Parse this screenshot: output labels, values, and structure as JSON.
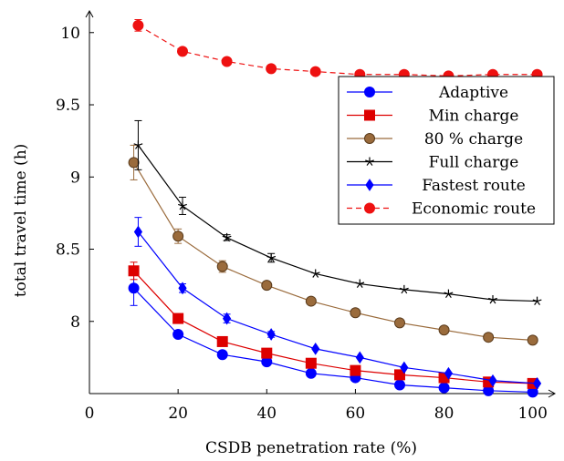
{
  "chart_data": {
    "type": "line",
    "title": "",
    "xlabel": "CSDB penetration rate (%)",
    "ylabel": "total travel time (h)",
    "xlim": [
      0,
      105
    ],
    "ylim": [
      7.5,
      10.15
    ],
    "xticks": [
      0,
      20,
      40,
      60,
      80,
      100
    ],
    "yticks": [
      8,
      8.5,
      9,
      9.5,
      10
    ],
    "ytick_labels": [
      "8",
      "8.5",
      "9",
      "9.5",
      "10"
    ],
    "grid": false,
    "legend_position": "right, upper-middle",
    "series": [
      {
        "name": "Adaptive",
        "color": "#0000ff",
        "marker": "circle",
        "dashed": false,
        "x": [
          10,
          20,
          30,
          40,
          50,
          60,
          70,
          80,
          90,
          100
        ],
        "y": [
          8.23,
          7.91,
          7.77,
          7.72,
          7.64,
          7.61,
          7.56,
          7.54,
          7.52,
          7.51
        ],
        "err": [
          0.12,
          0.02,
          0.0,
          0.0,
          0.0,
          0.0,
          0.0,
          0.0,
          0.0,
          0.0
        ]
      },
      {
        "name": "Min charge",
        "color": "#dd0000",
        "marker": "square",
        "dashed": false,
        "x": [
          10,
          20,
          30,
          40,
          50,
          60,
          70,
          80,
          90,
          100
        ],
        "y": [
          8.35,
          8.02,
          7.86,
          7.78,
          7.71,
          7.66,
          7.63,
          7.61,
          7.58,
          7.57
        ],
        "err": [
          0.06,
          0.03,
          0.0,
          0.0,
          0.0,
          0.0,
          0.0,
          0.0,
          0.0,
          0.0
        ]
      },
      {
        "name": "80 % charge",
        "color": "#9a6b3c",
        "marker": "circle",
        "dashed": false,
        "x": [
          10,
          20,
          30,
          40,
          50,
          60,
          70,
          80,
          90,
          100
        ],
        "y": [
          9.1,
          8.59,
          8.38,
          8.25,
          8.14,
          8.06,
          7.99,
          7.94,
          7.89,
          7.87
        ],
        "err": [
          0.12,
          0.05,
          0.04,
          0.01,
          0.0,
          0.0,
          0.0,
          0.0,
          0.0,
          0.0
        ]
      },
      {
        "name": "Full charge",
        "color": "#000000",
        "marker": "star",
        "dashed": false,
        "x": [
          11,
          21,
          31,
          41,
          51,
          61,
          71,
          81,
          91,
          101
        ],
        "y": [
          9.22,
          8.8,
          8.58,
          8.44,
          8.33,
          8.26,
          8.22,
          8.19,
          8.15,
          8.14
        ],
        "err": [
          0.17,
          0.06,
          0.02,
          0.03,
          0.0,
          0.0,
          0.0,
          0.0,
          0.0,
          0.0
        ]
      },
      {
        "name": "Fastest route",
        "color": "#0000ff",
        "marker": "diamond",
        "dashed": false,
        "x": [
          11,
          21,
          31,
          41,
          51,
          61,
          71,
          81,
          91,
          101
        ],
        "y": [
          8.62,
          8.23,
          8.02,
          7.91,
          7.81,
          7.75,
          7.68,
          7.64,
          7.59,
          7.57
        ],
        "err": [
          0.1,
          0.03,
          0.03,
          0.02,
          0.0,
          0.0,
          0.0,
          0.0,
          0.0,
          0.0
        ]
      },
      {
        "name": "Economic route",
        "color": "#ee1111",
        "marker": "circle",
        "dashed": true,
        "x": [
          11,
          21,
          31,
          41,
          51,
          61,
          71,
          81,
          91,
          101
        ],
        "y": [
          10.05,
          9.87,
          9.8,
          9.75,
          9.73,
          9.71,
          9.71,
          9.7,
          9.71,
          9.71
        ],
        "err": [
          0.04,
          0.0,
          0.0,
          0.0,
          0.0,
          0.0,
          0.0,
          0.0,
          0.0,
          0.0
        ]
      }
    ]
  }
}
